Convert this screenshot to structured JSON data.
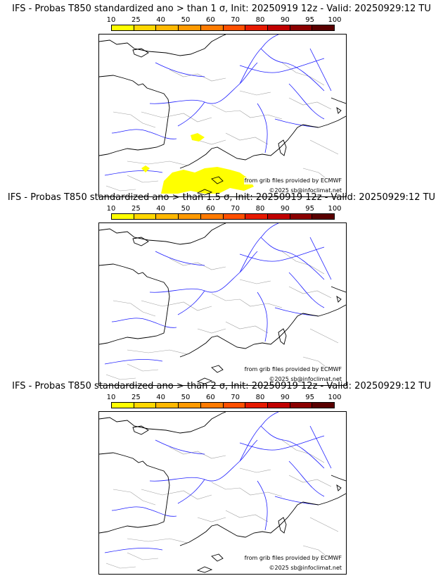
{
  "colorbar": {
    "ticks": [
      "10",
      "25",
      "40",
      "50",
      "60",
      "70",
      "80",
      "90",
      "95",
      "100"
    ],
    "colors": [
      "#ffff00",
      "#ffd700",
      "#ffb800",
      "#ff9a00",
      "#ff7b00",
      "#ff5000",
      "#e61a00",
      "#c00000",
      "#8b0000",
      "#5a0000"
    ]
  },
  "map_colors": {
    "coast": "#000000",
    "rivers": "#1f1fff",
    "borders": "#a0a0a0",
    "probability": "#ffff00"
  },
  "panels": [
    {
      "title": "IFS - Probas T850  standardized ano > than 1 σ, Init: 20250919 12z - Valid: 20250929:12 TU",
      "source_credit": "from grib files provided by ECMWF",
      "copyright": "©2025 sb@infoclimat.net",
      "has_probability_area": true
    },
    {
      "title": "IFS - Probas T850  standardized ano > than 1.5 σ, Init: 20250919 12z - Valid: 20250929:12 TU",
      "source_credit": "from grib files provided by ECMWF",
      "copyright": "©2025 sb@infoclimat.net",
      "has_probability_area": false
    },
    {
      "title": "IFS - Probas T850  standardized ano > than 2 σ, Init: 20250919 12z - Valid: 20250929:12 TU",
      "source_credit": "from grib files provided by ECMWF",
      "copyright": "©2025 sb@infoclimat.net",
      "has_probability_area": false
    }
  ]
}
